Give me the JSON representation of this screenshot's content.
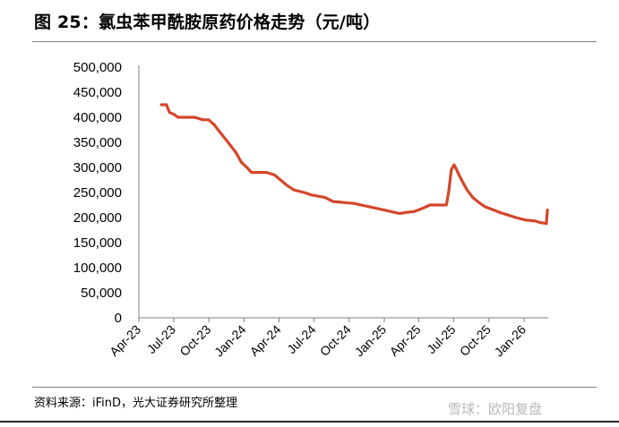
{
  "title": "图 25：氯虫苯甲酰胺原药价格走势（元/吨）",
  "source": "资料来源：iFinD，光大证券研究所整理",
  "watermark": "雪球：欧阳复盘",
  "colors": {
    "line": "#d4462a",
    "axis": "#808080"
  },
  "chart_data": {
    "type": "line",
    "title": "图 25：氯虫苯甲酰胺原药价格走势（元/吨）",
    "xlabel": "",
    "ylabel": "",
    "ylim": [
      0,
      500000
    ],
    "yticks": [
      0,
      50000,
      100000,
      150000,
      200000,
      250000,
      300000,
      350000,
      400000,
      450000,
      500000
    ],
    "ytick_labels": [
      "0",
      "50,000",
      "100,000",
      "150,000",
      "200,000",
      "250,000",
      "300,000",
      "350,000",
      "400,000",
      "450,000",
      "500,000"
    ],
    "xlim": [
      "2023-04",
      "2026-03"
    ],
    "xtick_labels": [
      "Apr-23",
      "Jul-23",
      "Oct-23",
      "Jan-24",
      "Apr-24",
      "Jul-24",
      "Oct-24",
      "Jan-25",
      "Apr-25",
      "Jul-25",
      "Oct-25",
      "Jan-26"
    ],
    "grid": false,
    "legend": "none",
    "series": [
      {
        "x": [
          "2023-05-30",
          "2023-06-12",
          "2023-06-20",
          "2023-07-03",
          "2023-07-12",
          "2023-08-25",
          "2023-09-15",
          "2023-09-30",
          "2023-10-15",
          "2023-10-30",
          "2023-11-20",
          "2023-12-10",
          "2023-12-25",
          "2024-01-08",
          "2024-01-20",
          "2024-02-28",
          "2024-03-20",
          "2024-04-05",
          "2024-04-20",
          "2024-05-10",
          "2024-06-05",
          "2024-06-25",
          "2024-07-30",
          "2024-08-20",
          "2024-10-15",
          "2024-11-01",
          "2024-12-02",
          "2024-12-31",
          "2025-02-10",
          "2025-02-25",
          "2025-03-20",
          "2025-04-10",
          "2025-04-30",
          "2025-05-25",
          "2025-06-12",
          "2025-06-18",
          "2025-06-25",
          "2025-07-02",
          "2025-07-06",
          "2025-07-15",
          "2025-07-25",
          "2025-08-05",
          "2025-08-20",
          "2025-09-05",
          "2025-09-20",
          "2025-10-10",
          "2025-10-30",
          "2025-11-20",
          "2025-12-10",
          "2026-01-05",
          "2026-01-30",
          "2026-02-12",
          "2026-02-28",
          "2026-03-03"
        ],
        "y": [
          425000,
          425000,
          410000,
          405000,
          400000,
          400000,
          395000,
          395000,
          385000,
          370000,
          350000,
          330000,
          310000,
          300000,
          290000,
          290000,
          285000,
          275000,
          265000,
          255000,
          250000,
          245000,
          240000,
          232000,
          228000,
          225000,
          220000,
          215000,
          208000,
          210000,
          212000,
          218000,
          225000,
          225000,
          225000,
          250000,
          295000,
          305000,
          300000,
          285000,
          270000,
          255000,
          240000,
          230000,
          222000,
          216000,
          210000,
          205000,
          200000,
          195000,
          193000,
          190000,
          188000,
          215000
        ]
      }
    ]
  }
}
